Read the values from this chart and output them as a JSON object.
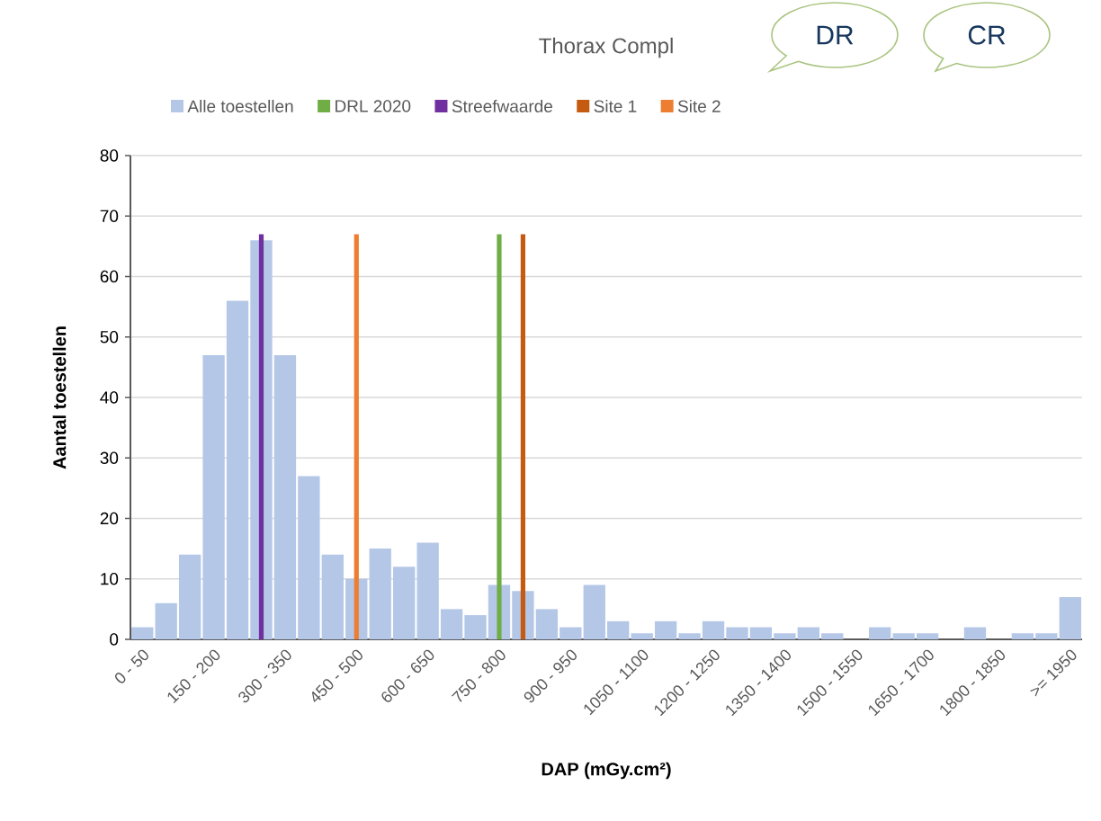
{
  "chart_data": {
    "type": "bar",
    "title": "Thorax Compl",
    "xlabel": "DAP (mGy.cm²)",
    "ylabel": "Aantal toestellen",
    "categories": [
      "0 - 50",
      null,
      null,
      "150 - 200",
      null,
      null,
      "300 - 350",
      null,
      null,
      "450 - 500",
      null,
      null,
      "600 - 650",
      null,
      null,
      "750 - 800",
      null,
      null,
      "900 - 950",
      null,
      null,
      "1050 - 1100",
      null,
      null,
      "1200 - 1250",
      null,
      null,
      "1350 - 1400",
      null,
      null,
      "1500 - 1550",
      null,
      null,
      "1650 - 1700",
      null,
      null,
      "1800 - 1850",
      null,
      null,
      ">= 1950"
    ],
    "series": [
      {
        "name": "Alle toestellen",
        "color": "#b4c7e7",
        "values": [
          2,
          6,
          14,
          47,
          56,
          66,
          47,
          27,
          14,
          10,
          15,
          12,
          16,
          5,
          4,
          9,
          8,
          5,
          2,
          9,
          3,
          1,
          3,
          1,
          3,
          2,
          2,
          1,
          2,
          1,
          0,
          2,
          1,
          1,
          0,
          2,
          0,
          1,
          1,
          7
        ]
      },
      {
        "name": "DRL 2020",
        "color": "#70ad47",
        "values": [
          null,
          null,
          null,
          null,
          null,
          null,
          null,
          null,
          null,
          null,
          null,
          null,
          null,
          null,
          null,
          67,
          null,
          null,
          null,
          null,
          null,
          null,
          null,
          null,
          null,
          null,
          null,
          null,
          null,
          null,
          null,
          null,
          null,
          null,
          null,
          null,
          null,
          null,
          null,
          null
        ]
      },
      {
        "name": "Streefwaarde",
        "color": "#7030a0",
        "values": [
          null,
          null,
          null,
          null,
          null,
          67,
          null,
          null,
          null,
          null,
          null,
          null,
          null,
          null,
          null,
          null,
          null,
          null,
          null,
          null,
          null,
          null,
          null,
          null,
          null,
          null,
          null,
          null,
          null,
          null,
          null,
          null,
          null,
          null,
          null,
          null,
          null,
          null,
          null,
          null
        ]
      },
      {
        "name": "Site 1",
        "color": "#c55a11",
        "values": [
          null,
          null,
          null,
          null,
          null,
          null,
          null,
          null,
          null,
          null,
          null,
          null,
          null,
          null,
          null,
          null,
          67,
          null,
          null,
          null,
          null,
          null,
          null,
          null,
          null,
          null,
          null,
          null,
          null,
          null,
          null,
          null,
          null,
          null,
          null,
          null,
          null,
          null,
          null,
          null
        ]
      },
      {
        "name": "Site 2",
        "color": "#ed7d31",
        "values": [
          null,
          null,
          null,
          null,
          null,
          null,
          null,
          null,
          null,
          67,
          null,
          null,
          null,
          null,
          null,
          null,
          null,
          null,
          null,
          null,
          null,
          null,
          null,
          null,
          null,
          null,
          null,
          null,
          null,
          null,
          null,
          null,
          null,
          null,
          null,
          null,
          null,
          null,
          null,
          null
        ]
      }
    ],
    "ylim": [
      0,
      80
    ],
    "yticks": [
      0,
      10,
      20,
      30,
      40,
      50,
      60,
      70,
      80
    ],
    "grid": "y",
    "legend": "top",
    "annotations": [
      "DR",
      "CR"
    ]
  }
}
